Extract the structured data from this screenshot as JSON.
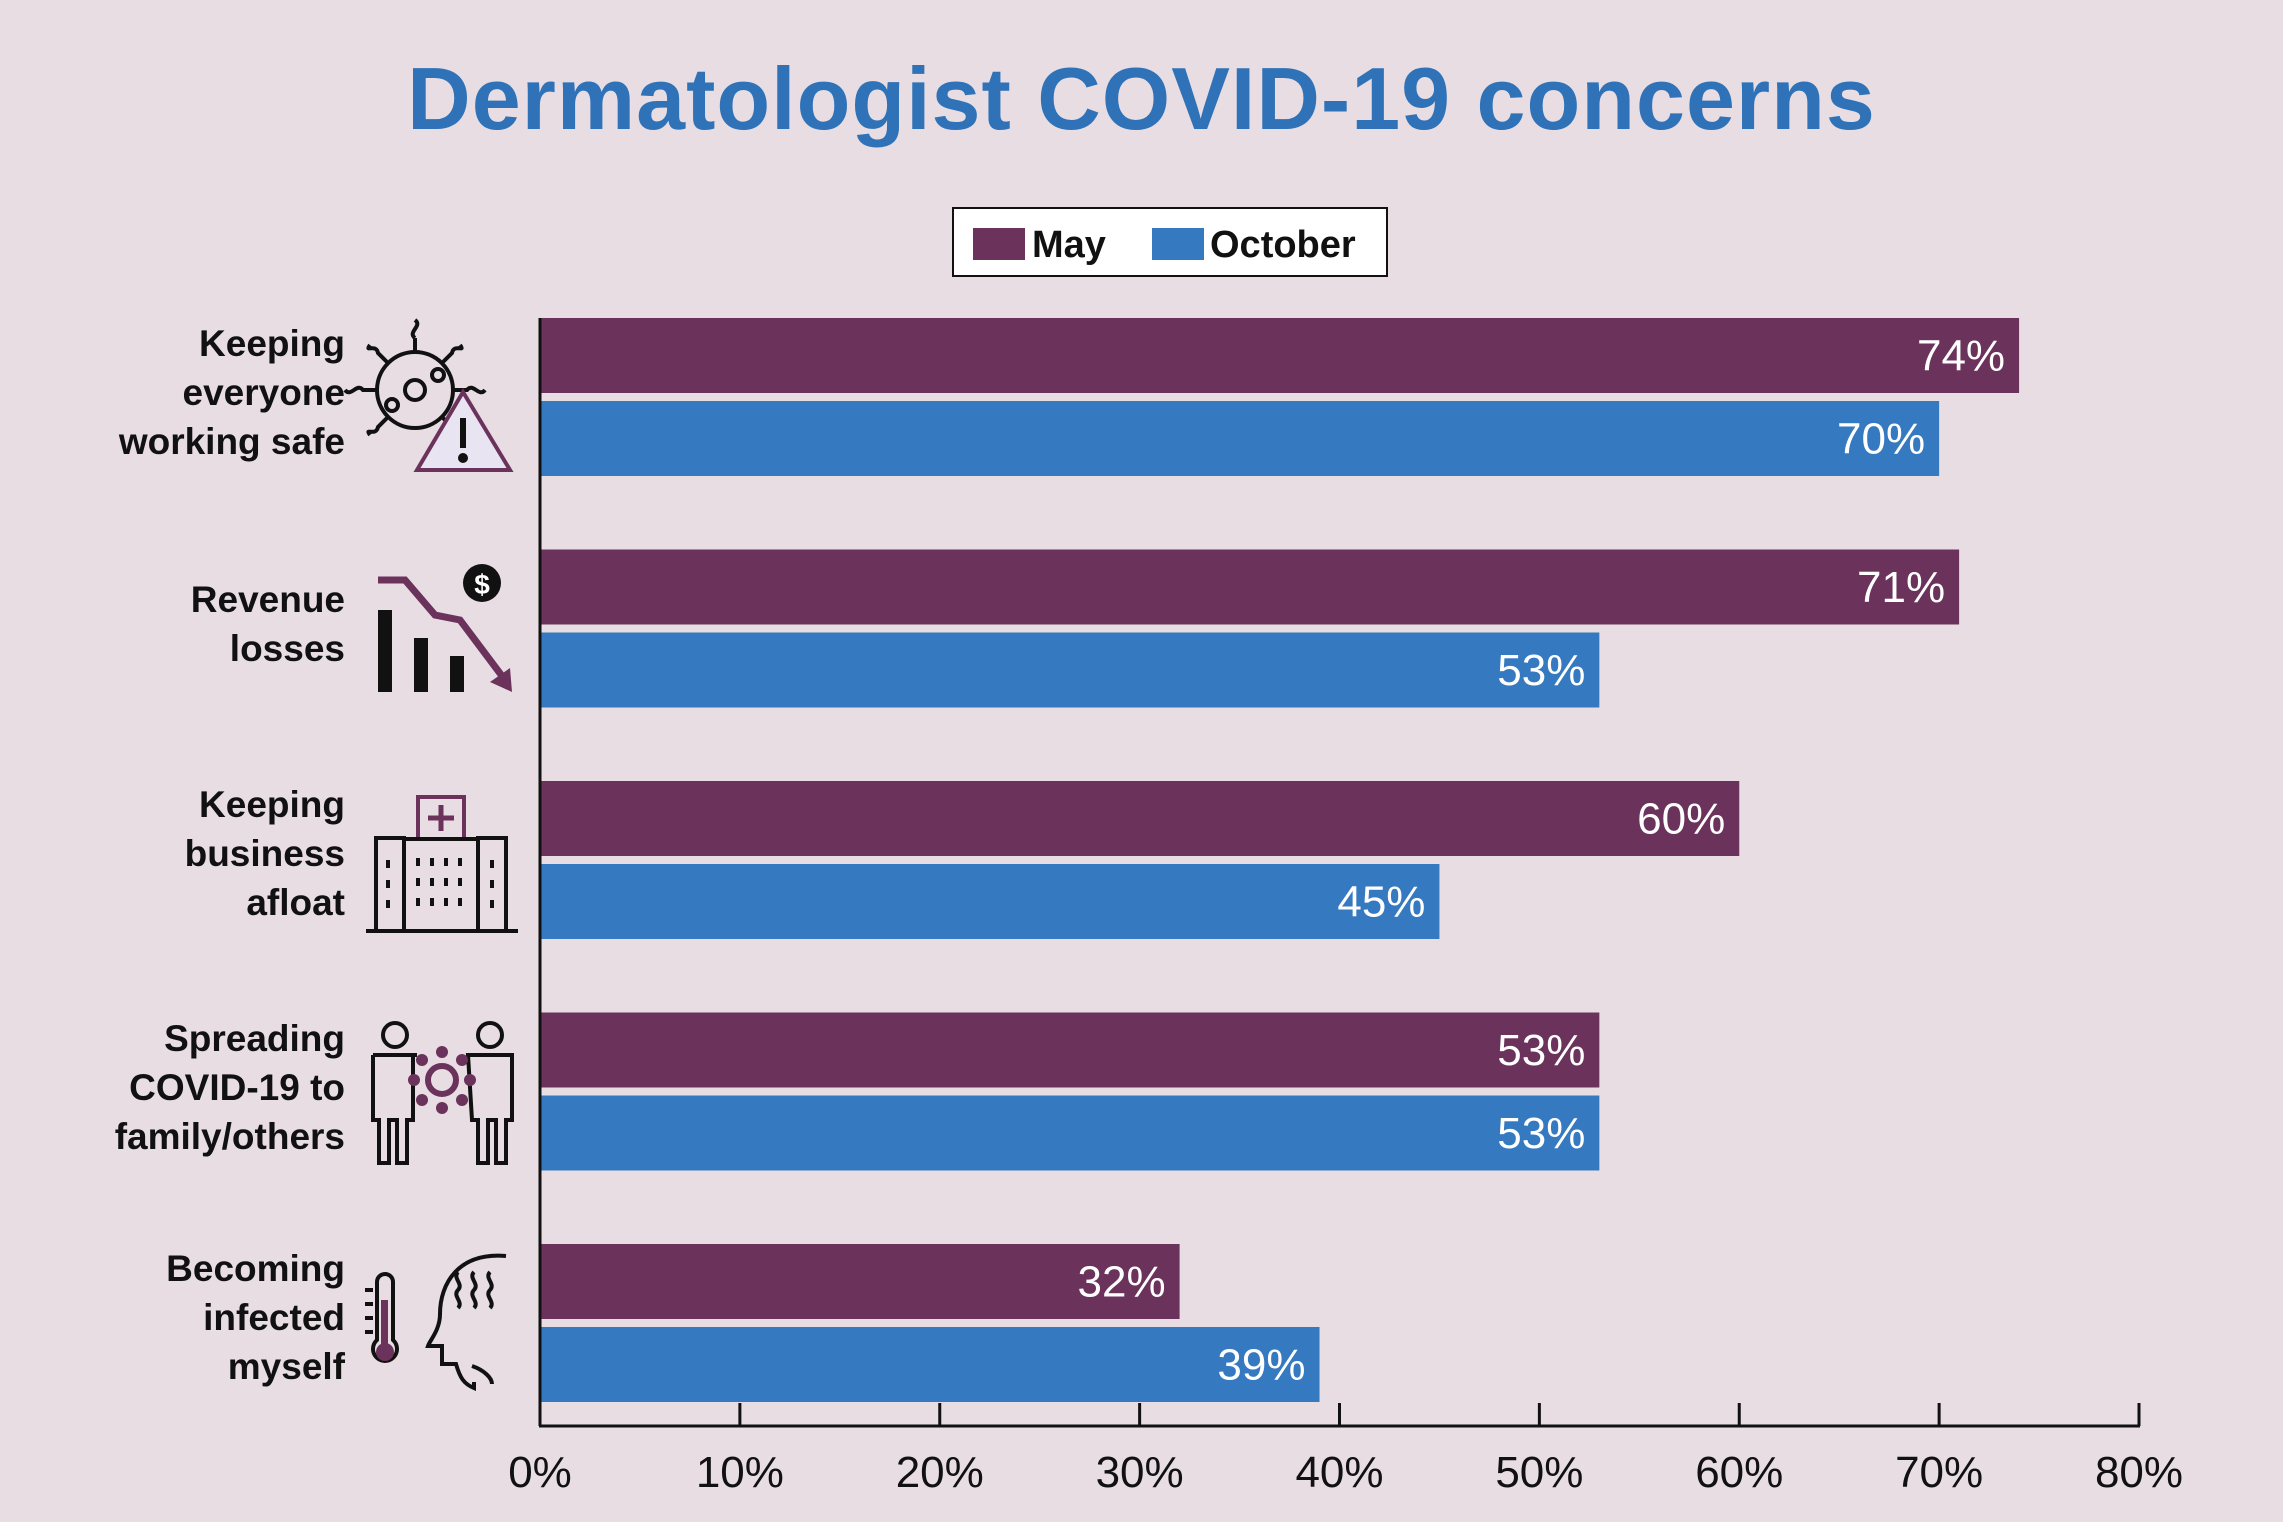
{
  "chart_data": {
    "type": "bar",
    "orientation": "horizontal",
    "title": "Dermatologist COVID-19 concerns",
    "categories": [
      "Keeping everyone working safe",
      "Revenue losses",
      "Keeping business afloat",
      "Spreading COVID-19 to family/others",
      "Becoming infected myself"
    ],
    "category_lines": [
      [
        "Keeping",
        "everyone",
        "working safe"
      ],
      [
        "Revenue",
        "losses"
      ],
      [
        "Keeping",
        "business",
        "afloat"
      ],
      [
        "Spreading",
        "COVID-19 to",
        "family/others"
      ],
      [
        "Becoming",
        "infected",
        "myself"
      ]
    ],
    "series": [
      {
        "name": "May",
        "color": "#6b325c",
        "values": [
          74,
          71,
          60,
          53,
          32
        ]
      },
      {
        "name": "October",
        "color": "#3579c0",
        "values": [
          70,
          53,
          45,
          53,
          39
        ]
      }
    ],
    "value_labels": {
      "May": [
        "74%",
        "71%",
        "60%",
        "53%",
        "32%"
      ],
      "October": [
        "70%",
        "53%",
        "45%",
        "53%",
        "39%"
      ]
    },
    "xlim": [
      0,
      80
    ],
    "xticks": [
      0,
      10,
      20,
      30,
      40,
      50,
      60,
      70,
      80
    ],
    "xtick_labels": [
      "0%",
      "10%",
      "20%",
      "30%",
      "40%",
      "50%",
      "60%",
      "70%",
      "80%"
    ],
    "legend": {
      "position": "top-center",
      "entries": [
        "May",
        "October"
      ]
    },
    "grid": false,
    "icons": [
      "virus-warning-icon",
      "revenue-decline-icon",
      "hospital-building-icon",
      "people-virus-icon",
      "fever-head-icon"
    ]
  },
  "colors": {
    "accent_title": "#2f72b8",
    "background": "#e7dde3",
    "icon_purple": "#6b325c"
  }
}
